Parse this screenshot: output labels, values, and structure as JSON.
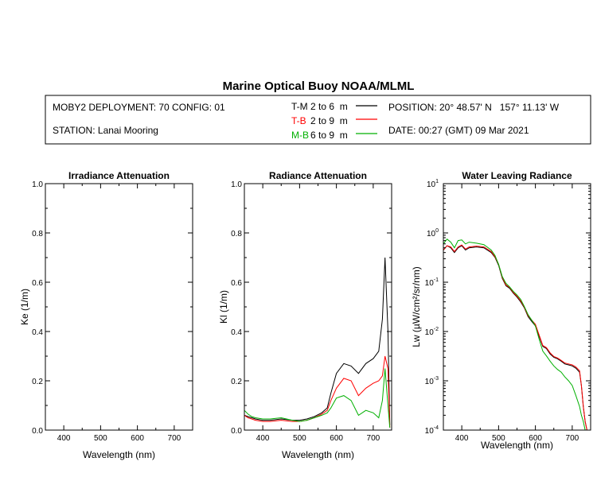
{
  "header": {
    "title": "Marine Optical Buoy NOAA/MLML",
    "deployment": "MOBY2 DEPLOYMENT: 70 CONFIG: 01",
    "station": "STATION: Lanai Mooring",
    "position": "POSITION: 20° 48.57' N   157° 11.13' W",
    "date": "DATE: 00:27 (GMT) 09 Mar 2021"
  },
  "legend": [
    {
      "code": "T-M",
      "range": "2 to 6  m",
      "color": "#000000"
    },
    {
      "code": "T-B",
      "range": "2 to 9  m",
      "color": "#ff0000"
    },
    {
      "code": "M-B",
      "range": "6 to 9  m",
      "color": "#00b000"
    }
  ],
  "chart_data": [
    {
      "type": "line",
      "title": "Irradiance Attenuation",
      "xlabel": "Wavelength (nm)",
      "ylabel": "Ke  (1/m)",
      "xlim": [
        350,
        750
      ],
      "ylim": [
        0,
        1
      ],
      "xticks": [
        400,
        500,
        600,
        700
      ],
      "yticks": [
        "0.0",
        "0.2",
        "0.4",
        "0.6",
        "0.8",
        "1.0"
      ],
      "series": []
    },
    {
      "type": "line",
      "title": "Radiance Attenuation",
      "xlabel": "Wavelength (nm)",
      "ylabel": "Kl  (1/m)",
      "xlim": [
        350,
        750
      ],
      "ylim": [
        0,
        1
      ],
      "xticks": [
        400,
        500,
        600,
        700
      ],
      "yticks": [
        "0.0",
        "0.2",
        "0.4",
        "0.6",
        "0.8",
        "1.0"
      ],
      "series": [
        {
          "name": "T-M",
          "color": "#000000",
          "x": [
            350,
            360,
            370,
            380,
            400,
            420,
            450,
            480,
            500,
            520,
            540,
            560,
            575,
            585,
            600,
            620,
            640,
            660,
            680,
            700,
            715,
            725,
            732,
            740,
            745
          ],
          "y": [
            0.06,
            0.055,
            0.05,
            0.045,
            0.04,
            0.04,
            0.045,
            0.04,
            0.04,
            0.045,
            0.055,
            0.07,
            0.09,
            0.15,
            0.23,
            0.27,
            0.26,
            0.23,
            0.27,
            0.29,
            0.32,
            0.45,
            0.7,
            0.4,
            0.02
          ]
        },
        {
          "name": "T-B",
          "color": "#ff0000",
          "x": [
            350,
            360,
            370,
            380,
            400,
            420,
            450,
            480,
            500,
            520,
            540,
            560,
            575,
            585,
            600,
            620,
            640,
            660,
            680,
            700,
            715,
            725,
            732,
            740,
            745
          ],
          "y": [
            0.06,
            0.05,
            0.045,
            0.04,
            0.035,
            0.035,
            0.04,
            0.035,
            0.035,
            0.04,
            0.05,
            0.065,
            0.08,
            0.12,
            0.17,
            0.21,
            0.2,
            0.14,
            0.17,
            0.19,
            0.2,
            0.22,
            0.3,
            0.25,
            0.01
          ]
        },
        {
          "name": "M-B",
          "color": "#00b000",
          "x": [
            350,
            360,
            370,
            380,
            400,
            420,
            450,
            480,
            500,
            520,
            540,
            560,
            575,
            585,
            600,
            620,
            640,
            660,
            680,
            700,
            715,
            725,
            732,
            740,
            745
          ],
          "y": [
            0.08,
            0.065,
            0.055,
            0.05,
            0.045,
            0.045,
            0.05,
            0.04,
            0.035,
            0.04,
            0.05,
            0.06,
            0.07,
            0.09,
            0.13,
            0.14,
            0.12,
            0.06,
            0.08,
            0.07,
            0.05,
            0.12,
            0.25,
            0.1,
            0.01
          ]
        }
      ]
    },
    {
      "type": "line",
      "title": "Water Leaving Radiance",
      "xlabel": "Wavelength (nm)",
      "ylabel": "Lw  (µW/cm²/sr/nm)",
      "xlim": [
        350,
        750
      ],
      "ylim": [
        0.0001,
        10
      ],
      "yscale": "log",
      "xticks": [
        400,
        500,
        600,
        700
      ],
      "yticks": [
        10,
        1,
        0.1,
        0.01,
        0.001,
        0.0001
      ],
      "ytick_labels": [
        [
          "10",
          "1"
        ],
        [
          "10",
          "0"
        ],
        [
          "10",
          "-1"
        ],
        [
          "10",
          "-2"
        ],
        [
          "10",
          "-3"
        ],
        [
          "10",
          "-4"
        ]
      ],
      "series": [
        {
          "name": "T-M",
          "color": "#000000",
          "x": [
            350,
            360,
            370,
            380,
            390,
            400,
            410,
            420,
            440,
            460,
            480,
            490,
            500,
            510,
            520,
            530,
            540,
            550,
            560,
            570,
            580,
            590,
            600,
            610,
            620,
            630,
            640,
            650,
            660,
            670,
            680,
            690,
            700,
            710,
            720,
            725,
            730,
            735,
            740
          ],
          "y": [
            0.45,
            0.55,
            0.5,
            0.4,
            0.5,
            0.55,
            0.45,
            0.5,
            0.52,
            0.5,
            0.4,
            0.32,
            0.22,
            0.12,
            0.085,
            0.075,
            0.06,
            0.05,
            0.04,
            0.03,
            0.02,
            0.016,
            0.013,
            0.008,
            0.005,
            0.0045,
            0.0035,
            0.003,
            0.0028,
            0.0025,
            0.0022,
            0.0021,
            0.002,
            0.0018,
            0.0015,
            0.0008,
            0.0003,
            0.00015,
            0.0001
          ]
        },
        {
          "name": "T-B",
          "color": "#ff0000",
          "x": [
            350,
            360,
            370,
            380,
            390,
            400,
            410,
            420,
            440,
            460,
            480,
            490,
            500,
            510,
            520,
            530,
            540,
            550,
            560,
            570,
            580,
            590,
            600,
            610,
            620,
            630,
            640,
            650,
            660,
            670,
            680,
            690,
            700,
            710,
            720,
            725,
            730,
            735,
            740
          ],
          "y": [
            0.45,
            0.55,
            0.52,
            0.42,
            0.52,
            0.57,
            0.47,
            0.52,
            0.54,
            0.52,
            0.42,
            0.33,
            0.23,
            0.125,
            0.088,
            0.078,
            0.062,
            0.052,
            0.042,
            0.031,
            0.021,
            0.017,
            0.014,
            0.0085,
            0.0052,
            0.0047,
            0.0037,
            0.0031,
            0.0029,
            0.0026,
            0.0023,
            0.0022,
            0.0021,
            0.0019,
            0.0016,
            0.0008,
            0.0003,
            0.00015,
            0.0001
          ]
        },
        {
          "name": "M-B",
          "color": "#00b000",
          "x": [
            350,
            360,
            370,
            380,
            390,
            400,
            410,
            420,
            440,
            460,
            480,
            490,
            500,
            510,
            520,
            530,
            540,
            550,
            560,
            570,
            580,
            590,
            600,
            610,
            620,
            630,
            640,
            650,
            660,
            670,
            680,
            690,
            700,
            710,
            720,
            725,
            730,
            735,
            740
          ],
          "y": [
            0.6,
            0.75,
            0.65,
            0.5,
            0.7,
            0.72,
            0.6,
            0.65,
            0.62,
            0.58,
            0.45,
            0.35,
            0.23,
            0.13,
            0.095,
            0.08,
            0.065,
            0.055,
            0.045,
            0.032,
            0.022,
            0.017,
            0.013,
            0.007,
            0.004,
            0.0032,
            0.0025,
            0.002,
            0.0017,
            0.0015,
            0.0012,
            0.001,
            0.0008,
            0.0005,
            0.0003,
            0.0002,
            0.00015,
            0.0001,
            0.0001
          ]
        }
      ]
    }
  ]
}
